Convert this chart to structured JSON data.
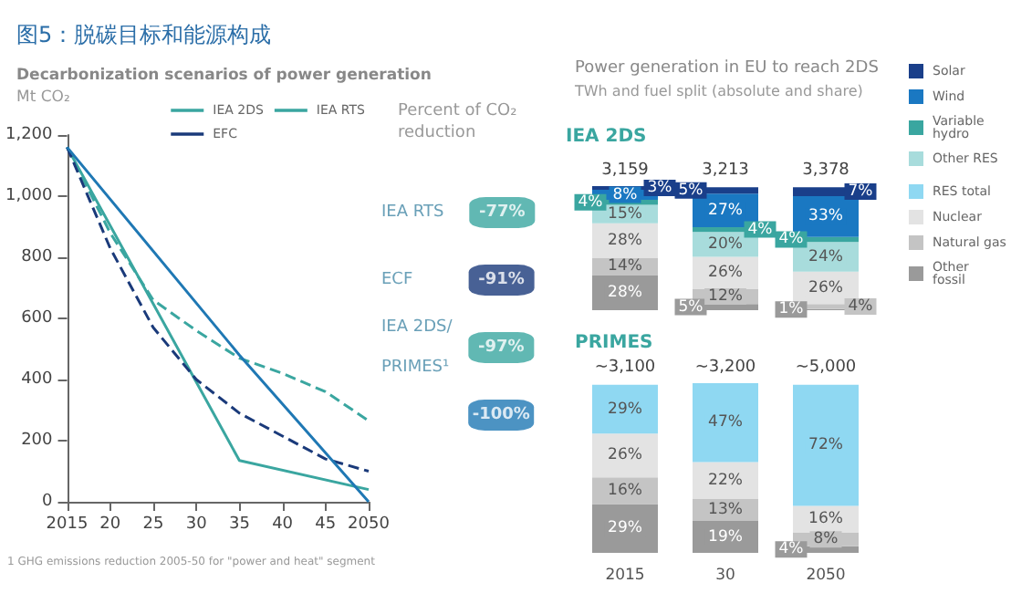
{
  "chart_data": [
    {
      "type": "line",
      "title": "图5：脱碳目标和能源构成",
      "subtitle": "Decarbonization scenarios of power generation",
      "ylabel": "Mt CO₂",
      "xlim": [
        2015,
        2050
      ],
      "xticks": [
        2015,
        {
          "value": 2020,
          "label": "20"
        },
        {
          "value": 2025,
          "label": "25"
        },
        {
          "value": 2030,
          "label": "30"
        },
        {
          "value": 2035,
          "label": "35"
        },
        {
          "value": 2040,
          "label": "40"
        },
        {
          "value": 2045,
          "label": "45"
        },
        2050
      ],
      "ylim": [
        0,
        1200
      ],
      "yticks": [
        0,
        200,
        400,
        600,
        800,
        {
          "value": 1000,
          "label": "1,000"
        },
        {
          "value": 1200,
          "label": "1,200"
        }
      ],
      "legend": "top right",
      "marker": "none",
      "series": [
        {
          "name": "IEA 2DS",
          "color": "#3aa6a0",
          "line_style": "solid",
          "x": [
            2015,
            2035,
            2050
          ],
          "values": [
            1160,
            135,
            40
          ]
        },
        {
          "name": "IEA RTS",
          "color": "#3aa6a0",
          "line_style": "dashed",
          "x": [
            2015,
            2020,
            2025,
            2030,
            2035,
            2040,
            2045,
            2050
          ],
          "values": [
            1160,
            880,
            660,
            560,
            470,
            420,
            360,
            265
          ]
        },
        {
          "name": "EFC",
          "color": "#1a3a7a",
          "line_style": "dashed",
          "x": [
            2015,
            2020,
            2025,
            2030,
            2035,
            2040,
            2045,
            2050
          ],
          "values": [
            1160,
            830,
            570,
            400,
            290,
            215,
            140,
            100
          ]
        },
        {
          "color": "#1f78b4",
          "line_style": "solid",
          "x": [
            2015,
            2035,
            2050
          ],
          "values": [
            1160,
            480,
            0
          ]
        }
      ],
      "annotations": [
        "1 GHG emissions reduction 2005-50 for \"power and heat\" segment"
      ]
    },
    {
      "type": "other",
      "title": "Percent of CO₂ reduction",
      "categories": [
        "IEA RTS",
        "ECF",
        "IEA 2DS/ PRIMES¹",
        null
      ],
      "values": [
        -77,
        -91,
        -97,
        -100
      ],
      "value_labels": [
        "-77%",
        "-91%",
        "-97%",
        "-100%"
      ],
      "colors": [
        "#3aa6a0",
        "#1a3a7a",
        "#3aa6a0",
        "#1f78b4"
      ]
    },
    {
      "type": "bar",
      "title": "Power generation in EU to reach 2DS",
      "subtitle": "TWh and fuel split (absolute and share)",
      "annotations": [
        "3,159",
        "3,213",
        "3,378",
        "IEA 2DS"
      ],
      "categories": [
        null,
        null,
        null
      ],
      "stacked": true,
      "legend": "right",
      "series": [
        {
          "name": "Other fossil",
          "color": "#9a9a9a",
          "values": [
            28,
            5,
            1
          ],
          "value_labels": [
            "28%",
            "5%",
            "1%"
          ]
        },
        {
          "name": "Natural gas",
          "color": "#c4c4c4",
          "values": [
            14,
            12,
            4
          ],
          "value_labels": [
            "14%",
            "12%",
            "4%"
          ]
        },
        {
          "name": "Nuclear",
          "color": "#e3e3e3",
          "values": [
            28,
            26,
            26
          ],
          "value_labels": [
            "28%",
            "26%",
            "26%"
          ]
        },
        {
          "name": "Other RES",
          "color": "#a8dcdc",
          "values": [
            15,
            20,
            24
          ],
          "value_labels": [
            "15%",
            "20%",
            "24%"
          ]
        },
        {
          "name": "Variable hydro",
          "color": "#3aa6a0",
          "values": [
            4,
            4,
            4
          ],
          "value_labels": [
            "4%",
            "4%",
            "4%"
          ]
        },
        {
          "name": "Wind",
          "color": "#1a78c2",
          "values": [
            8,
            27,
            33
          ],
          "value_labels": [
            "8%",
            "27%",
            "33%"
          ]
        },
        {
          "name": "Solar",
          "color": "#1a3f8a",
          "values": [
            3,
            5,
            7
          ],
          "value_labels": [
            "3%",
            "5%",
            "7%"
          ]
        }
      ]
    },
    {
      "type": "bar",
      "title": "PRIMES",
      "categories": [
        "2015",
        "30",
        "2050"
      ],
      "stacked": true,
      "annotations": [
        "~3,100",
        "~3,200",
        "~5,000"
      ],
      "legend": "right",
      "series": [
        {
          "color": "#9a9a9a",
          "values": [
            29,
            19,
            4
          ],
          "value_labels": [
            "29%",
            "19%",
            "4%"
          ]
        },
        {
          "color": "#c4c4c4",
          "values": [
            16,
            13,
            8
          ],
          "value_labels": [
            "16%",
            "13%",
            "8%"
          ]
        },
        {
          "color": "#e3e3e3",
          "values": [
            26,
            22,
            16
          ],
          "value_labels": [
            "26%",
            "22%",
            "16%"
          ]
        },
        {
          "name": "RES total",
          "color": "#8fd8f2",
          "values": [
            29,
            47,
            72
          ],
          "value_labels": [
            "29%",
            "47%",
            "72%"
          ]
        }
      ]
    }
  ]
}
